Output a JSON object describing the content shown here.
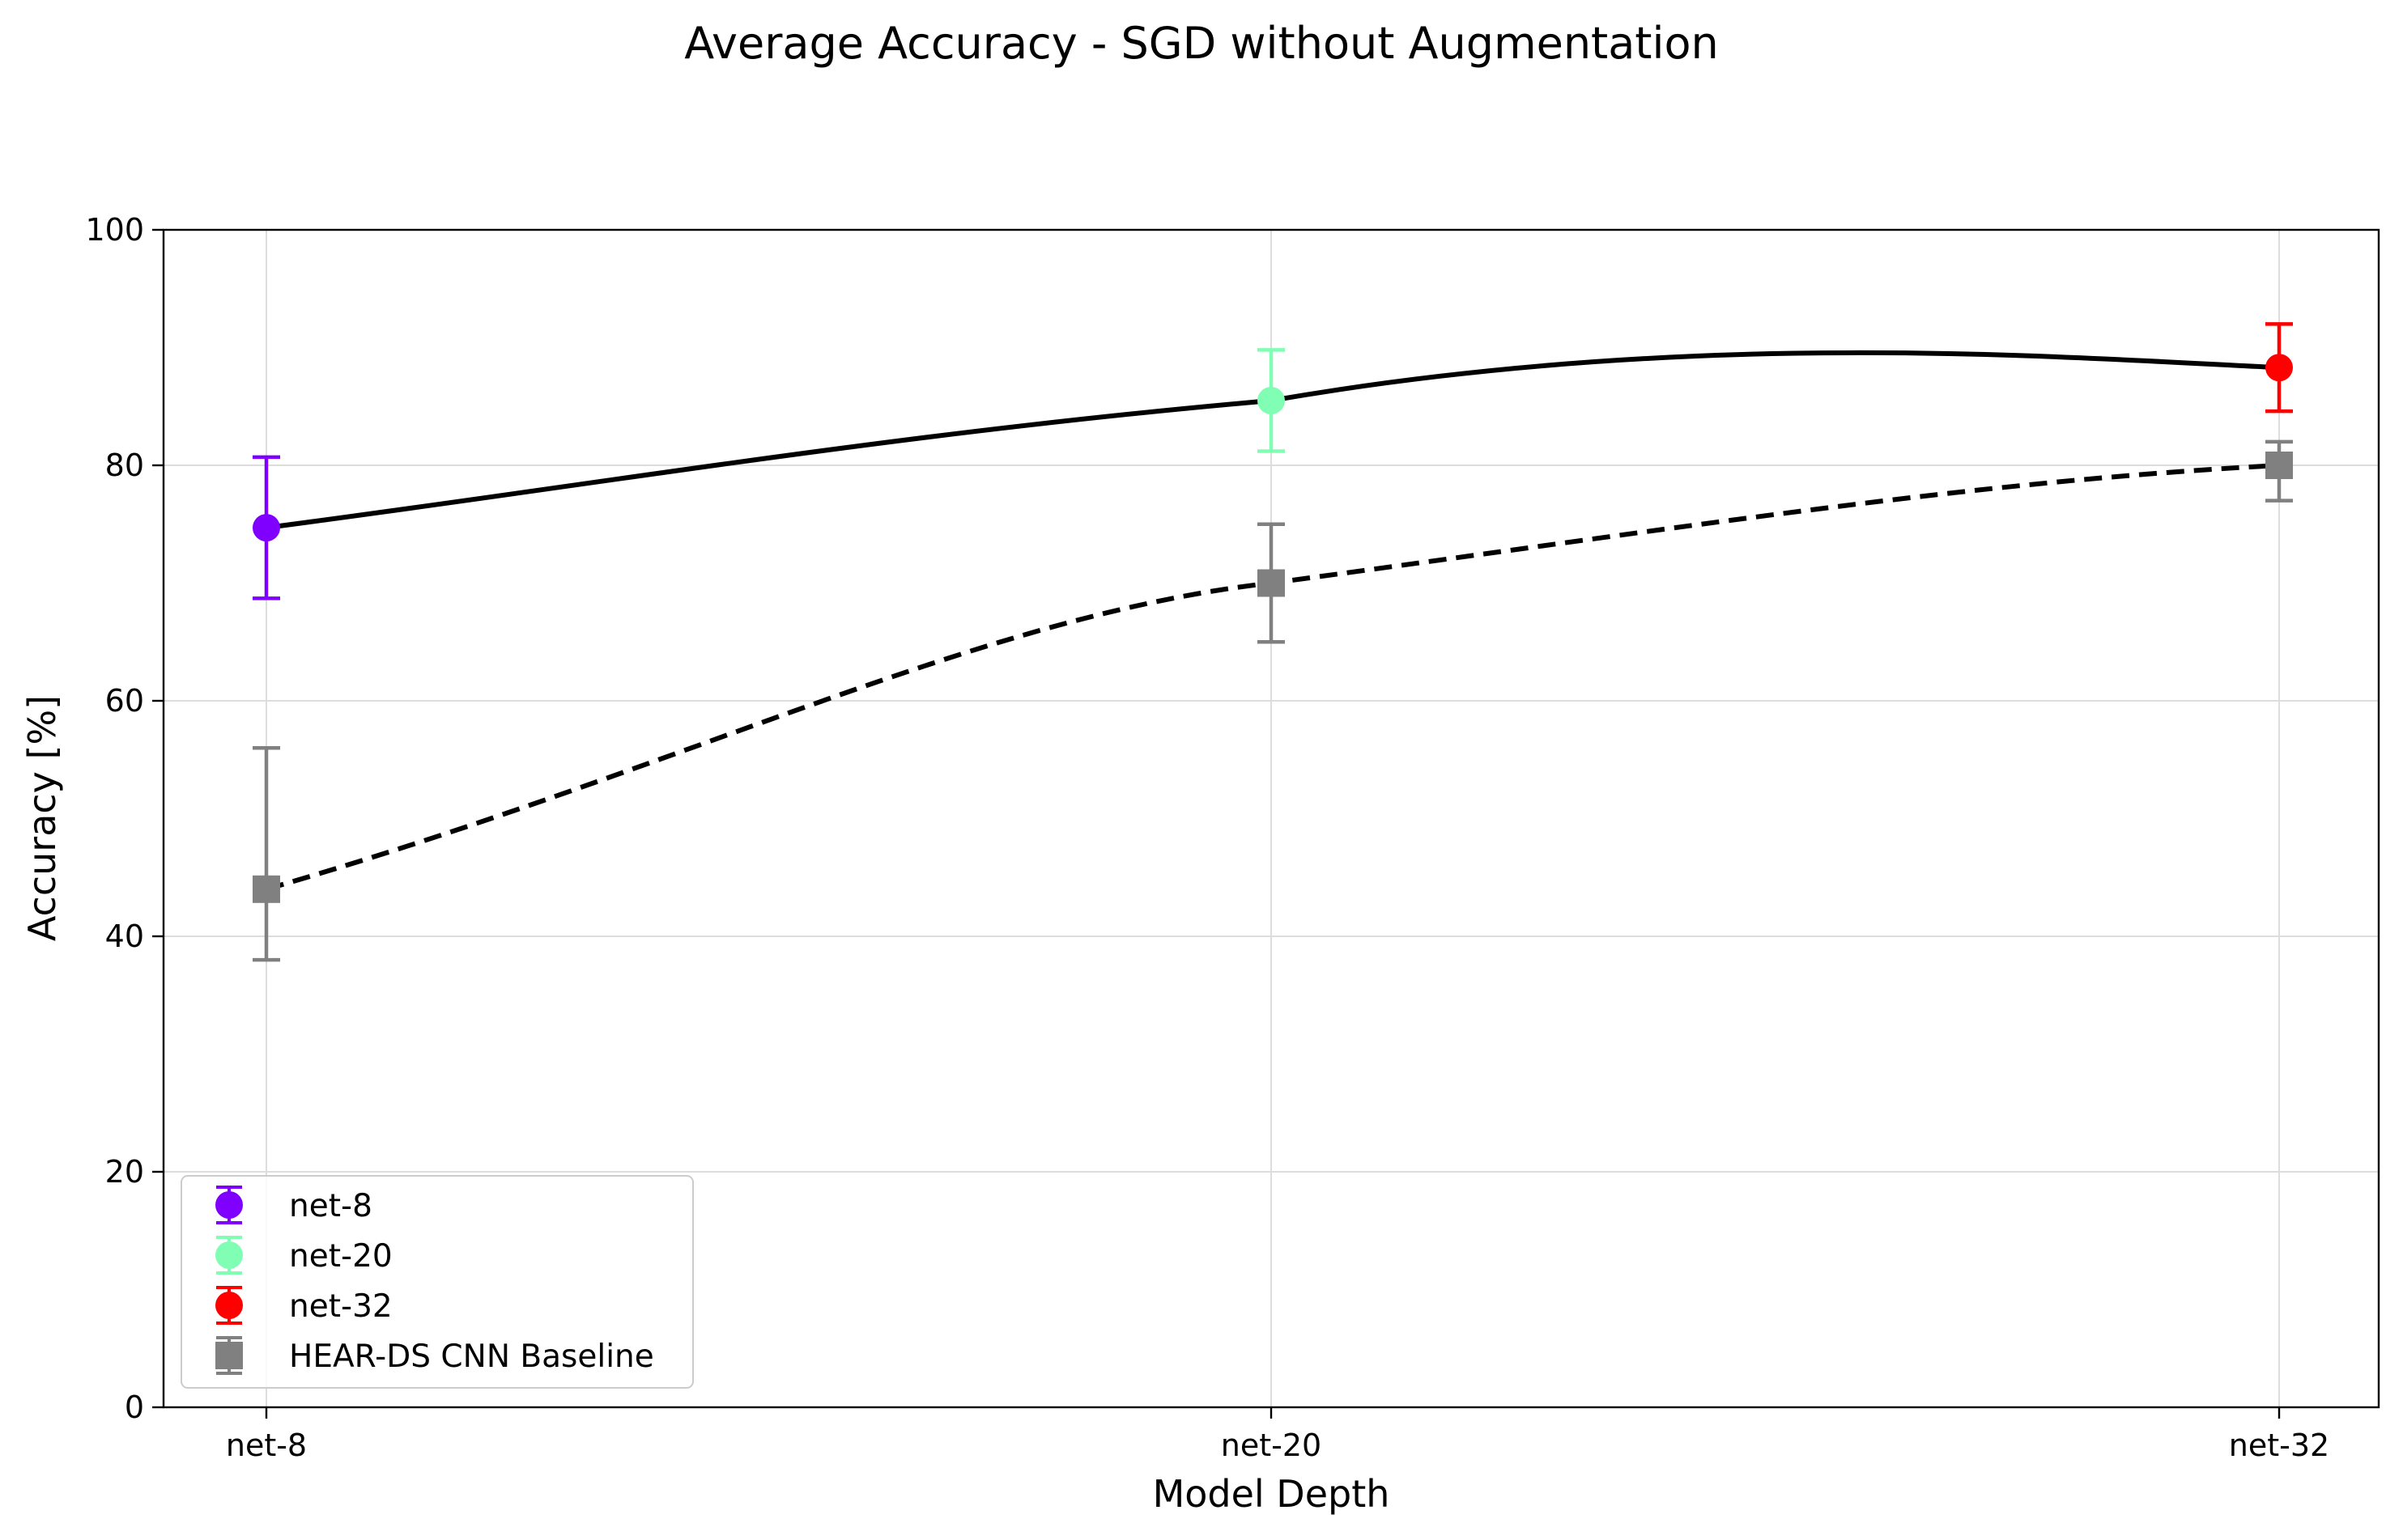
{
  "chart_data": {
    "type": "line",
    "title": "Average Accuracy - SGD without Augmentation",
    "xlabel": "Model Depth",
    "ylabel": "Accuracy [%]",
    "categories": [
      "net-8",
      "net-20",
      "net-32"
    ],
    "ylim": [
      0,
      100
    ],
    "yticks": [
      0,
      20,
      40,
      60,
      80,
      100
    ],
    "grid": true,
    "legend_position": "lower-left",
    "series": [
      {
        "name": "net-8",
        "x": "net-8",
        "y": 74.7,
        "error": 6.0,
        "marker": "circle",
        "color": "#7f00ff"
      },
      {
        "name": "net-20",
        "x": "net-20",
        "y": 85.5,
        "error": 4.3,
        "marker": "circle",
        "color": "#80ffb4"
      },
      {
        "name": "net-32",
        "x": "net-32",
        "y": 88.3,
        "error": 3.7,
        "marker": "circle",
        "color": "#ff0000"
      },
      {
        "name": "HEAR-DS CNN Baseline",
        "x": [
          "net-8",
          "net-20",
          "net-32"
        ],
        "y": [
          44,
          70,
          80
        ],
        "error": [
          [
            6,
            12
          ],
          [
            5,
            5
          ],
          [
            3,
            2
          ]
        ],
        "marker": "square",
        "color": "#808080"
      }
    ],
    "model_curve": {
      "style": "solid",
      "color": "#000000",
      "y": [
        74.7,
        85.5,
        88.3
      ]
    },
    "baseline_curve": {
      "style": "dashed",
      "color": "#000000",
      "y": [
        44,
        70,
        80
      ]
    }
  }
}
